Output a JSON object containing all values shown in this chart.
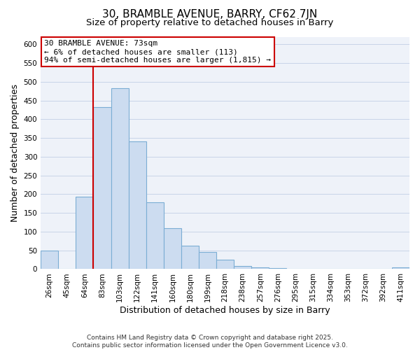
{
  "title": "30, BRAMBLE AVENUE, BARRY, CF62 7JN",
  "subtitle": "Size of property relative to detached houses in Barry",
  "xlabel": "Distribution of detached houses by size in Barry",
  "ylabel": "Number of detached properties",
  "bin_labels": [
    "26sqm",
    "45sqm",
    "64sqm",
    "83sqm",
    "103sqm",
    "122sqm",
    "141sqm",
    "160sqm",
    "180sqm",
    "199sqm",
    "218sqm",
    "238sqm",
    "257sqm",
    "276sqm",
    "295sqm",
    "315sqm",
    "334sqm",
    "353sqm",
    "372sqm",
    "392sqm",
    "411sqm"
  ],
  "bar_values": [
    50,
    0,
    193,
    433,
    483,
    340,
    178,
    110,
    62,
    45,
    25,
    9,
    4,
    2,
    1,
    1,
    0,
    0,
    0,
    0,
    4
  ],
  "bar_color": "#ccdcf0",
  "bar_edge_color": "#7badd4",
  "vline_color": "#cc0000",
  "vline_x_index": 2,
  "annotation_text_line1": "30 BRAMBLE AVENUE: 73sqm",
  "annotation_text_line2": "← 6% of detached houses are smaller (113)",
  "annotation_text_line3": "94% of semi-detached houses are larger (1,815) →",
  "ylim": [
    0,
    620
  ],
  "yticks": [
    0,
    50,
    100,
    150,
    200,
    250,
    300,
    350,
    400,
    450,
    500,
    550,
    600
  ],
  "grid_color": "#c8d4e8",
  "bg_color": "#eef2f9",
  "footer_line1": "Contains HM Land Registry data © Crown copyright and database right 2025.",
  "footer_line2": "Contains public sector information licensed under the Open Government Licence v3.0.",
  "title_fontsize": 11,
  "subtitle_fontsize": 9.5,
  "axis_label_fontsize": 9,
  "tick_fontsize": 7.5,
  "annotation_fontsize": 8,
  "footer_fontsize": 6.5
}
